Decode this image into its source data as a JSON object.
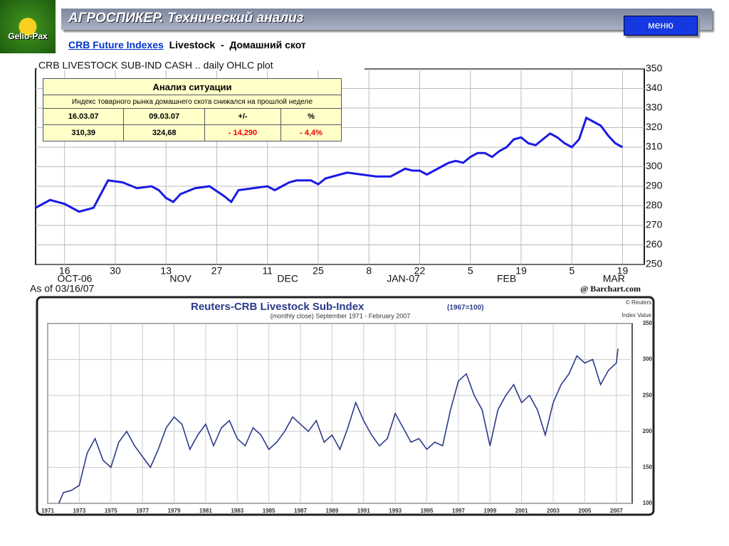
{
  "header": {
    "logo": "Gelio-Pax",
    "title": "АГРОСПИКЕР.",
    "subtitle": "Технический анализ",
    "menu": "меню",
    "link": "CRB Future Indexes",
    "section": "Livestock  -",
    "section_ru": "Домашний скот"
  },
  "table": {
    "title": "Анализ ситуации",
    "note": "Индекс товарного рынка  домашнего скота снижался на прошлой неделе",
    "header": [
      "16.03.07",
      "09.03.07",
      "+/-",
      "%"
    ],
    "rows": [
      [
        "310,39",
        "324,68",
        "- 14,290",
        "- 4,4%"
      ]
    ]
  },
  "chart_data": [
    {
      "type": "line",
      "title": "CRB LIVESTOCK SUB-IND CASH .. daily OHLC plot",
      "footnote": "As of 03/16/07",
      "source": "@ Barchart.com",
      "color": "#1a1ae6",
      "grid": true,
      "x": [
        0,
        4,
        8,
        12,
        16,
        18,
        20,
        24,
        28,
        32,
        34,
        36,
        38,
        40,
        44,
        48,
        52,
        54,
        56,
        60,
        64,
        66,
        68,
        70,
        72,
        76,
        78,
        80,
        84,
        86,
        90,
        94,
        98,
        100,
        102,
        104,
        106,
        108,
        110,
        112,
        114,
        116,
        118,
        120,
        122,
        124,
        126,
        128,
        130,
        132,
        134,
        136,
        138,
        140,
        142,
        144,
        146,
        148,
        150,
        152,
        154,
        156,
        158,
        160,
        162
      ],
      "values": [
        279,
        283,
        281,
        277,
        279,
        286,
        293,
        292,
        289,
        290,
        288,
        284,
        282,
        286,
        289,
        290,
        285,
        282,
        288,
        289,
        290,
        288,
        290,
        292,
        293,
        293,
        291,
        294,
        296,
        297,
        296,
        295,
        295,
        297,
        299,
        298,
        298,
        296,
        298,
        300,
        302,
        303,
        302,
        305,
        307,
        307,
        305,
        308,
        310,
        314,
        315,
        312,
        311,
        314,
        317,
        315,
        312,
        310,
        314,
        325,
        323,
        321,
        316,
        312,
        310
      ],
      "xlim": [
        0,
        168
      ],
      "ylim": [
        250,
        350
      ],
      "yticks": [
        250,
        260,
        270,
        280,
        290,
        300,
        310,
        320,
        330,
        340,
        350
      ],
      "xticks": [
        {
          "value": 8,
          "label": "16"
        },
        {
          "value": 22,
          "label": "30"
        },
        {
          "value": 36,
          "label": "13"
        },
        {
          "value": 50,
          "label": "27"
        },
        {
          "value": 64,
          "label": "11"
        },
        {
          "value": 78,
          "label": "25"
        },
        {
          "value": 92,
          "label": "8"
        },
        {
          "value": 106,
          "label": "22"
        },
        {
          "value": 120,
          "label": "5"
        },
        {
          "value": 134,
          "label": "19"
        },
        {
          "value": 148,
          "label": "5"
        },
        {
          "value": 162,
          "label": "19"
        }
      ],
      "xmonths": [
        {
          "value": 10.8,
          "label": "OCT-06"
        },
        {
          "value": 40,
          "label": "NOV"
        },
        {
          "value": 69.6,
          "label": "DEC"
        },
        {
          "value": 101.5,
          "label": "JAN-07"
        },
        {
          "value": 130,
          "label": "FEB"
        },
        {
          "value": 159.6,
          "label": "MAR"
        }
      ]
    },
    {
      "type": "line",
      "title": "Reuters-CRB Livestock Sub-Index",
      "title_note": "(1967=100)",
      "subtitle": "(monthly close) September 1971 - February 2007",
      "source": "© Reuters",
      "ylabel": "Index Value",
      "color": "#2b3a8a",
      "grid": true,
      "x": [
        1971.7,
        1972,
        1972.5,
        1973,
        1973.5,
        1974,
        1974.5,
        1975,
        1975.5,
        1976,
        1976.5,
        1977,
        1977.5,
        1978,
        1978.5,
        1979,
        1979.5,
        1980,
        1980.5,
        1981,
        1981.5,
        1982,
        1982.5,
        1983,
        1983.5,
        1984,
        1984.5,
        1985,
        1985.5,
        1986,
        1986.5,
        1987,
        1987.5,
        1988,
        1988.5,
        1989,
        1989.5,
        1990,
        1990.5,
        1991,
        1991.5,
        1992,
        1992.5,
        1993,
        1993.5,
        1994,
        1994.5,
        1995,
        1995.5,
        1996,
        1996.5,
        1997,
        1997.5,
        1998,
        1998.5,
        1999,
        1999.5,
        2000,
        2000.5,
        2001,
        2001.5,
        2002,
        2002.5,
        2003,
        2003.5,
        2004,
        2004.5,
        2005,
        2005.5,
        2006,
        2006.5,
        2007,
        2007.1
      ],
      "values": [
        100,
        115,
        118,
        125,
        170,
        190,
        160,
        150,
        185,
        200,
        180,
        165,
        150,
        175,
        205,
        220,
        210,
        175,
        195,
        210,
        180,
        205,
        215,
        190,
        180,
        205,
        195,
        175,
        185,
        200,
        220,
        210,
        200,
        215,
        185,
        195,
        175,
        205,
        240,
        215,
        195,
        180,
        190,
        225,
        205,
        185,
        190,
        175,
        185,
        180,
        230,
        270,
        280,
        250,
        230,
        180,
        230,
        250,
        265,
        240,
        250,
        230,
        195,
        240,
        265,
        280,
        305,
        295,
        300,
        265,
        285,
        295,
        315
      ],
      "xlim": [
        1971,
        2008
      ],
      "ylim": [
        100,
        350
      ],
      "yticks": [
        100,
        150,
        200,
        250,
        300,
        350
      ],
      "xticks": [
        1971,
        1973,
        1975,
        1977,
        1979,
        1981,
        1983,
        1985,
        1987,
        1989,
        1991,
        1993,
        1995,
        1997,
        1999,
        2001,
        2003,
        2005,
        2007
      ]
    }
  ]
}
